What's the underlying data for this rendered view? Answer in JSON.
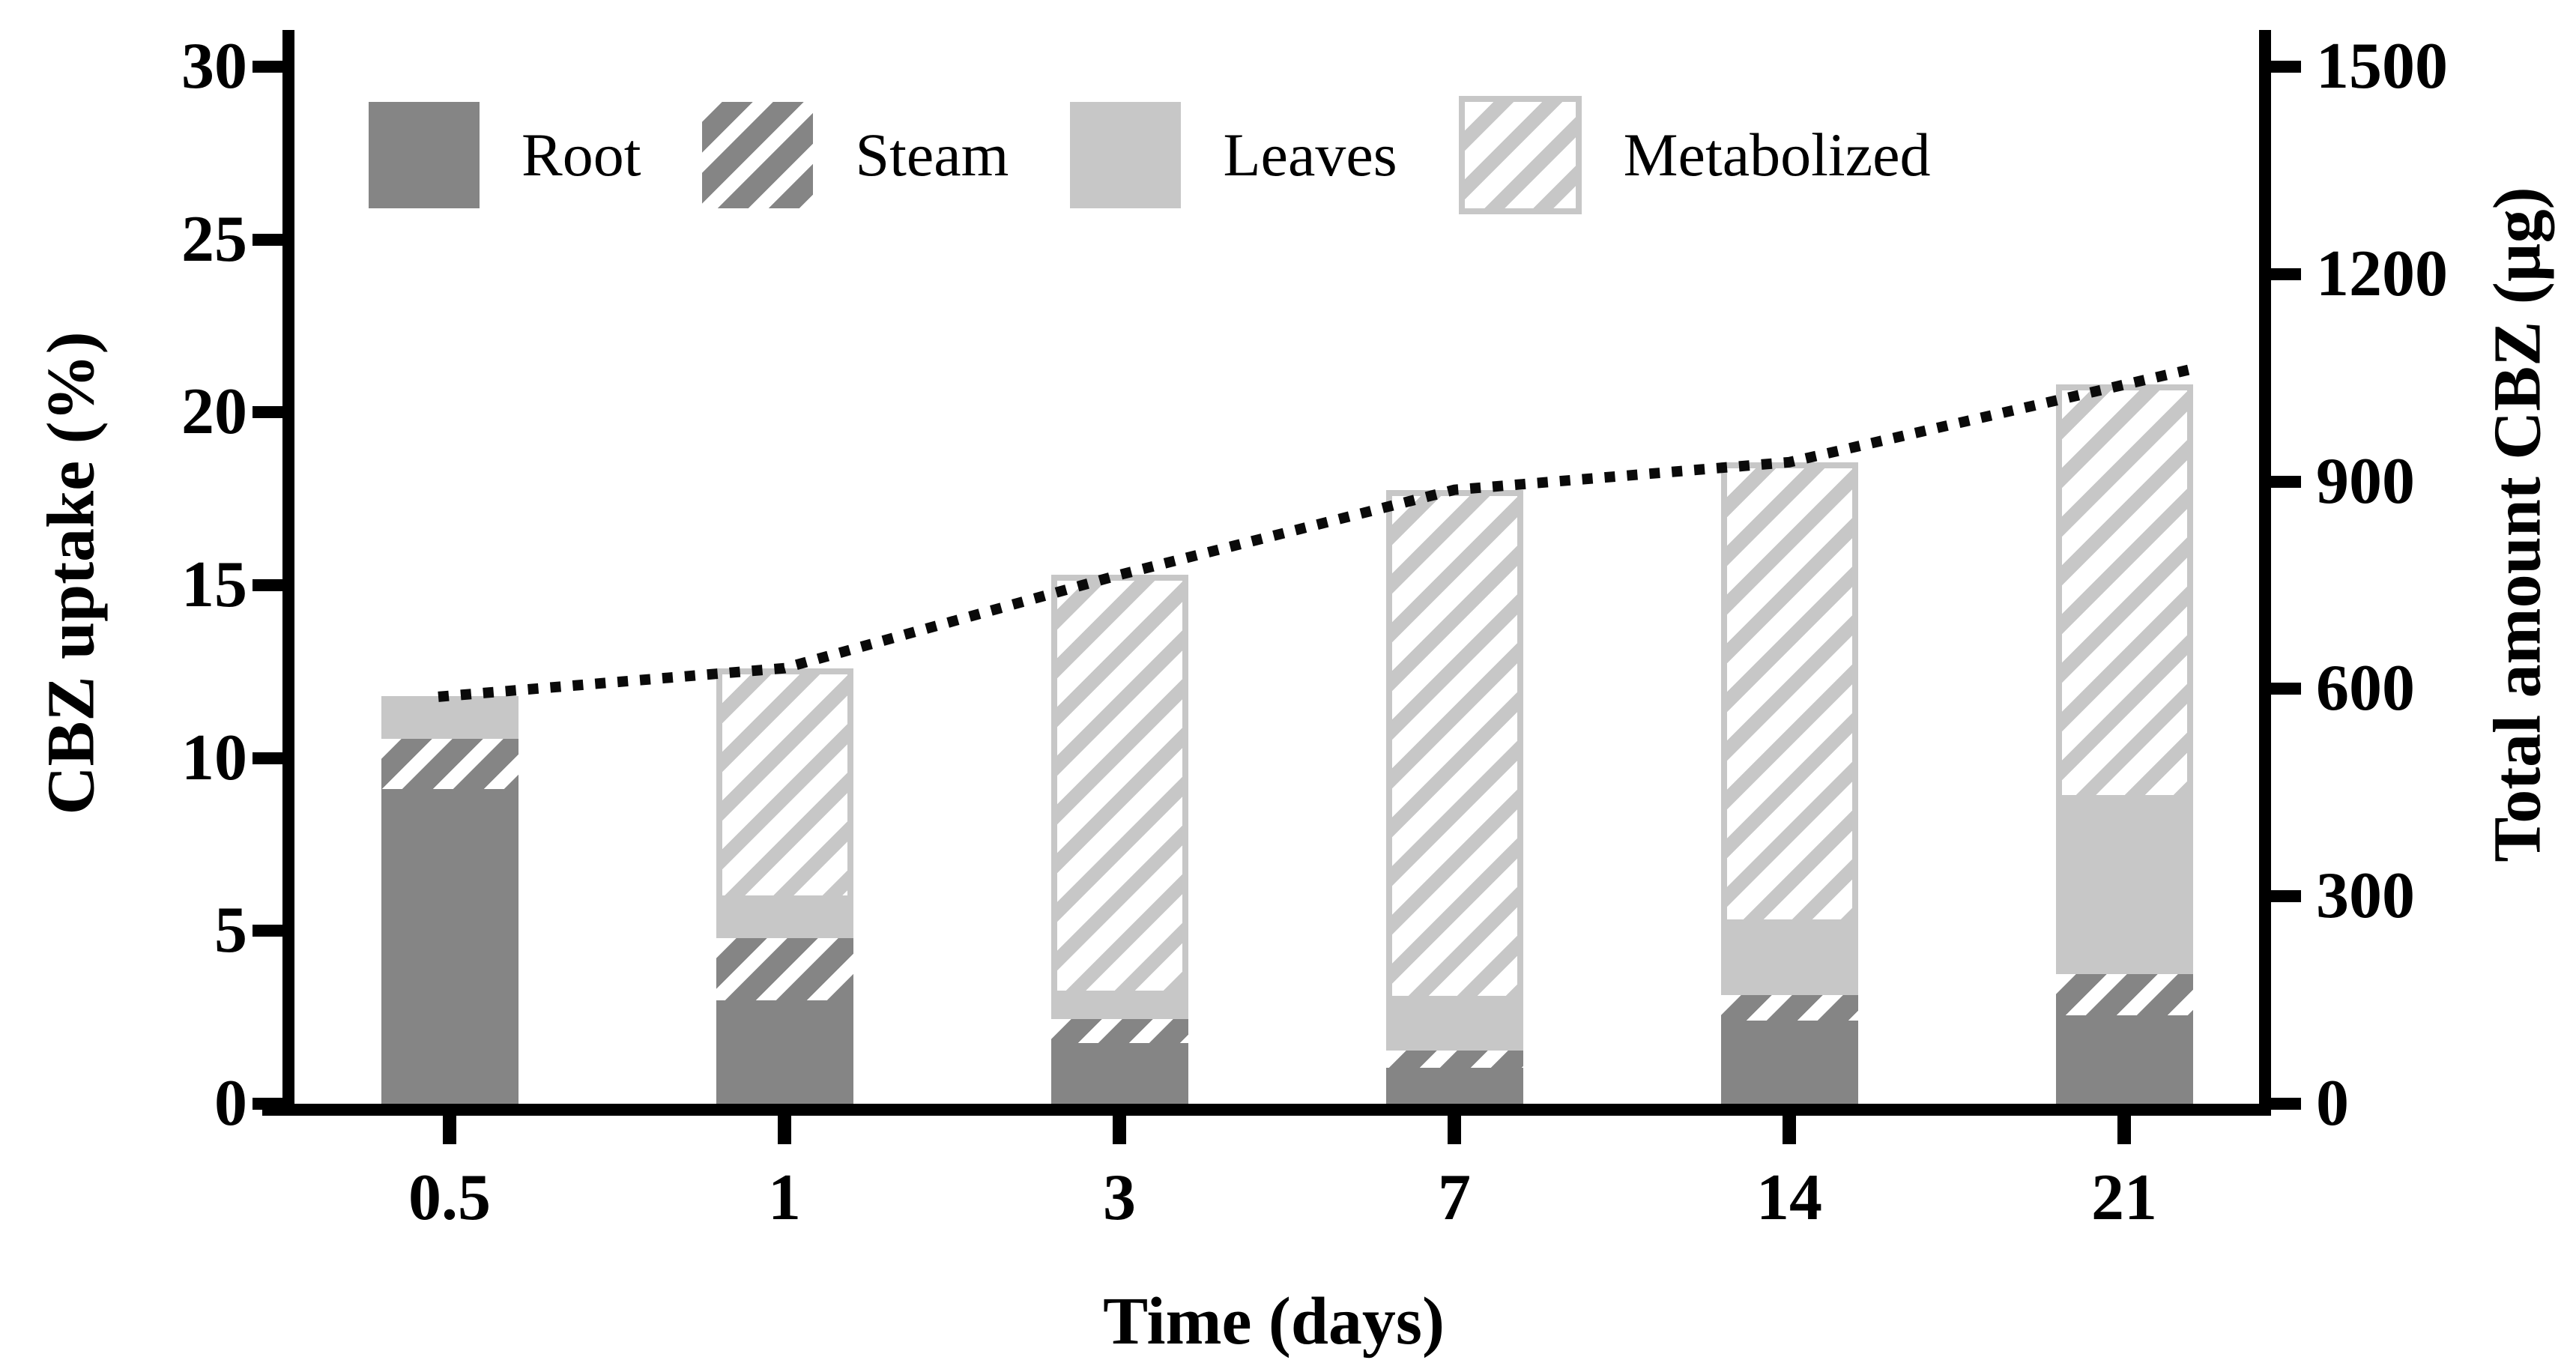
{
  "colors": {
    "dark_gray": "#858585",
    "light_gray": "#c7c7c7",
    "line_black": "#0a0a0a"
  },
  "chart_data": {
    "type": "bar",
    "stacked": true,
    "categories": [
      "0.5",
      "1",
      "3",
      "7",
      "14",
      "21"
    ],
    "series": [
      {
        "name": "Root",
        "pattern": "solid-dark",
        "values": [
          9.1,
          3.0,
          1.75,
          1.05,
          2.4,
          2.55
        ]
      },
      {
        "name": "Steam",
        "pattern": "hatch-dark",
        "values": [
          1.45,
          1.8,
          0.7,
          0.5,
          0.75,
          1.2
        ]
      },
      {
        "name": "Leaves",
        "pattern": "solid-light",
        "values": [
          1.25,
          1.05,
          0.65,
          1.4,
          2.0,
          5.0
        ]
      },
      {
        "name": "Metabolized",
        "pattern": "hatch-light",
        "values": [
          0,
          6.75,
          12.2,
          14.8,
          13.4,
          12.05
        ]
      }
    ],
    "stack_totals_percent": [
      11.8,
      12.6,
      15.3,
      17.75,
      18.55,
      20.8
    ],
    "line": {
      "name": "Total amount CBZ",
      "axis": "right",
      "style": "dotted",
      "values": [
        590,
        630,
        765,
        888,
        928,
        1040
      ]
    },
    "y_left": {
      "label": "CBZ uptake (%)",
      "min": 0,
      "max": 30,
      "ticks": [
        0,
        5,
        10,
        15,
        20,
        25,
        30
      ]
    },
    "y_right": {
      "label": "Total amount CBZ (µg)",
      "min": 0,
      "max": 1500,
      "ticks": [
        0,
        300,
        600,
        900,
        1200,
        1500
      ]
    },
    "x": {
      "label": "Time (days)"
    },
    "legend": [
      "Root",
      "Steam",
      "Leaves",
      "Metabolized"
    ],
    "legend_position": "top-left-inside",
    "grid": false
  }
}
